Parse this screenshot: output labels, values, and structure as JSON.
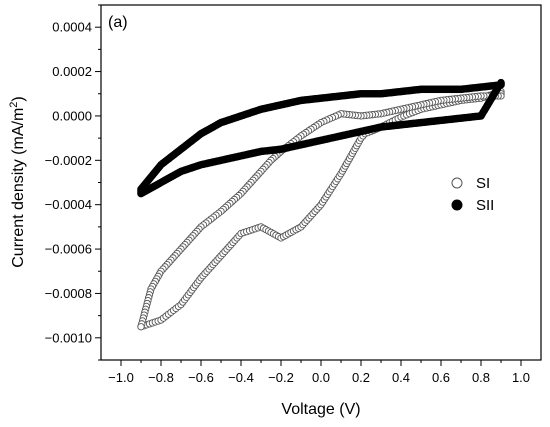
{
  "chart_data": {
    "type": "scatter",
    "panel_label": "(a)",
    "title": "",
    "xlabel": "Voltage (V)",
    "ylabel_main": "Current density (mA/m",
    "ylabel_sup": "2",
    "ylabel_close": ")",
    "xlim": [
      -1.1,
      1.1
    ],
    "ylim": [
      -0.0011,
      0.0005
    ],
    "x_ticks": [
      -1.0,
      -0.8,
      -0.6,
      -0.4,
      -0.2,
      0.0,
      0.2,
      0.4,
      0.6,
      0.8,
      1.0
    ],
    "x_tick_labels": [
      "−1.0",
      "−0.8",
      "−0.6",
      "−0.4",
      "−0.2",
      "0.0",
      "0.2",
      "0.4",
      "0.6",
      "0.8",
      "1.0"
    ],
    "y_ticks": [
      -0.001,
      -0.0008,
      -0.0006,
      -0.0004,
      -0.0002,
      0.0,
      0.0002,
      0.0004
    ],
    "y_tick_labels": [
      "−0.0010",
      "−0.0008",
      "−0.0006",
      "−0.0004",
      "−0.0002",
      "0.0000",
      "0.0002",
      "0.0004"
    ],
    "grid": false,
    "legend_position": "right",
    "series": [
      {
        "name": "SI",
        "marker": "open-circle",
        "color": "#555555",
        "x": [
          -0.9,
          -0.8,
          -0.7,
          -0.6,
          -0.5,
          -0.4,
          -0.3,
          -0.2,
          -0.1,
          0.0,
          0.1,
          0.15,
          0.2,
          0.22,
          0.25,
          0.3,
          0.4,
          0.5,
          0.6,
          0.7,
          0.8,
          0.9,
          0.9,
          0.8,
          0.7,
          0.6,
          0.5,
          0.4,
          0.3,
          0.2,
          0.1,
          0.0,
          -0.1,
          -0.2,
          -0.25,
          -0.3,
          -0.35,
          -0.4,
          -0.5,
          -0.6,
          -0.7,
          -0.8,
          -0.85,
          -0.9
        ],
        "y": [
          -0.00095,
          -0.00092,
          -0.00085,
          -0.00073,
          -0.00063,
          -0.00053,
          -0.0005,
          -0.00055,
          -0.0005,
          -0.0004,
          -0.00026,
          -0.00018,
          -0.0001,
          -8e-05,
          -7e-05,
          -5e-05,
          -5e-06,
          3e-05,
          5e-05,
          7e-05,
          8e-05,
          0.00011,
          9e-05,
          9e-05,
          8e-05,
          7e-05,
          5e-05,
          3e-05,
          1e-05,
          0.0,
          1e-05,
          -3e-05,
          -9e-05,
          -0.00016,
          -0.0002,
          -0.00025,
          -0.0003,
          -0.00035,
          -0.00043,
          -0.0005,
          -0.0006,
          -0.0007,
          -0.00078,
          -0.00095
        ]
      },
      {
        "name": "SII",
        "marker": "filled-circle",
        "color": "#000000",
        "x": [
          -0.9,
          -0.8,
          -0.7,
          -0.6,
          -0.5,
          -0.4,
          -0.3,
          -0.2,
          -0.1,
          0.0,
          0.1,
          0.2,
          0.3,
          0.4,
          0.5,
          0.6,
          0.7,
          0.8,
          0.9,
          0.9,
          0.8,
          0.7,
          0.6,
          0.5,
          0.4,
          0.3,
          0.2,
          0.1,
          0.0,
          -0.1,
          -0.2,
          -0.3,
          -0.4,
          -0.5,
          -0.6,
          -0.7,
          -0.8,
          -0.9
        ],
        "y": [
          -0.00035,
          -0.0003,
          -0.00025,
          -0.00022,
          -0.0002,
          -0.00018,
          -0.00016,
          -0.00015,
          -0.00013,
          -0.00011,
          -9e-05,
          -7e-05,
          -5e-05,
          -4e-05,
          -3e-05,
          -2e-05,
          -1e-05,
          0.0,
          0.00015,
          0.00014,
          0.00013,
          0.00012,
          0.00012,
          0.00012,
          0.00011,
          0.0001,
          0.0001,
          9e-05,
          8e-05,
          7e-05,
          5e-05,
          3e-05,
          0.0,
          -3e-05,
          -8e-05,
          -0.00015,
          -0.00022,
          -0.00033
        ]
      }
    ]
  }
}
